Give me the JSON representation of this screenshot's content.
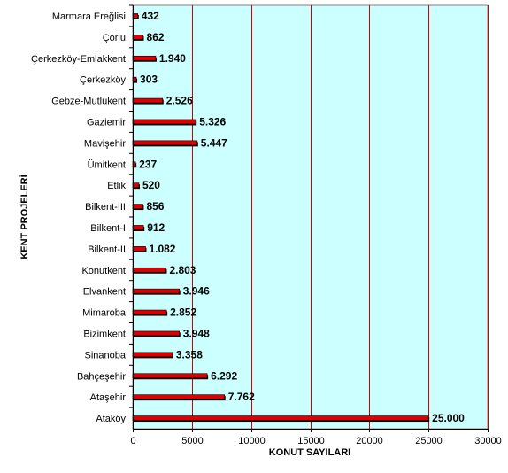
{
  "chart_data": {
    "type": "bar",
    "orientation": "horizontal",
    "categories": [
      "Marmara Ereğlisi",
      "Çorlu",
      "Çerkezköy-Emlakkent",
      "Çerkezköy",
      "Gebze-Mutlukent",
      "Gaziemir",
      "Mavişehir",
      "Ümitkent",
      "Etlik",
      "Bilkent-III",
      "Bilkent-I",
      "Bilkent-II",
      "Konutkent",
      "Elvankent",
      "Mimaroba",
      "Bizimkent",
      "Sinanoba",
      "Bahçeşehir",
      "Ataşehir",
      "Ataköy"
    ],
    "values": [
      432,
      862,
      1940,
      303,
      2526,
      5326,
      5447,
      237,
      520,
      856,
      912,
      1082,
      2803,
      3946,
      2852,
      3948,
      3358,
      6292,
      7762,
      25000
    ],
    "data_labels": [
      "432",
      "862",
      "1.940",
      "303",
      "2.526",
      "5.326",
      "5.447",
      "237",
      "520",
      "856",
      "912",
      "1.082",
      "2.803",
      "3.946",
      "2.852",
      "3.948",
      "3.358",
      "6.292",
      "7.762",
      "25.000"
    ],
    "xlabel": "KONUT SAYILARI",
    "ylabel": "KENT PROJELERİ",
    "xlim": [
      0,
      30000
    ],
    "x_ticks": [
      0,
      5000,
      10000,
      15000,
      20000,
      25000,
      30000
    ],
    "x_tick_labels": [
      "0",
      "5000",
      "10000",
      "15000",
      "20000",
      "25000",
      "30000"
    ],
    "grid": "vertical",
    "legend": "none",
    "colors": {
      "plot_background": "#ccffff",
      "bar_fill": "#dd0000",
      "bar_shadow": "#000000",
      "gridline": "#cc0000",
      "axis": "#000000"
    }
  }
}
